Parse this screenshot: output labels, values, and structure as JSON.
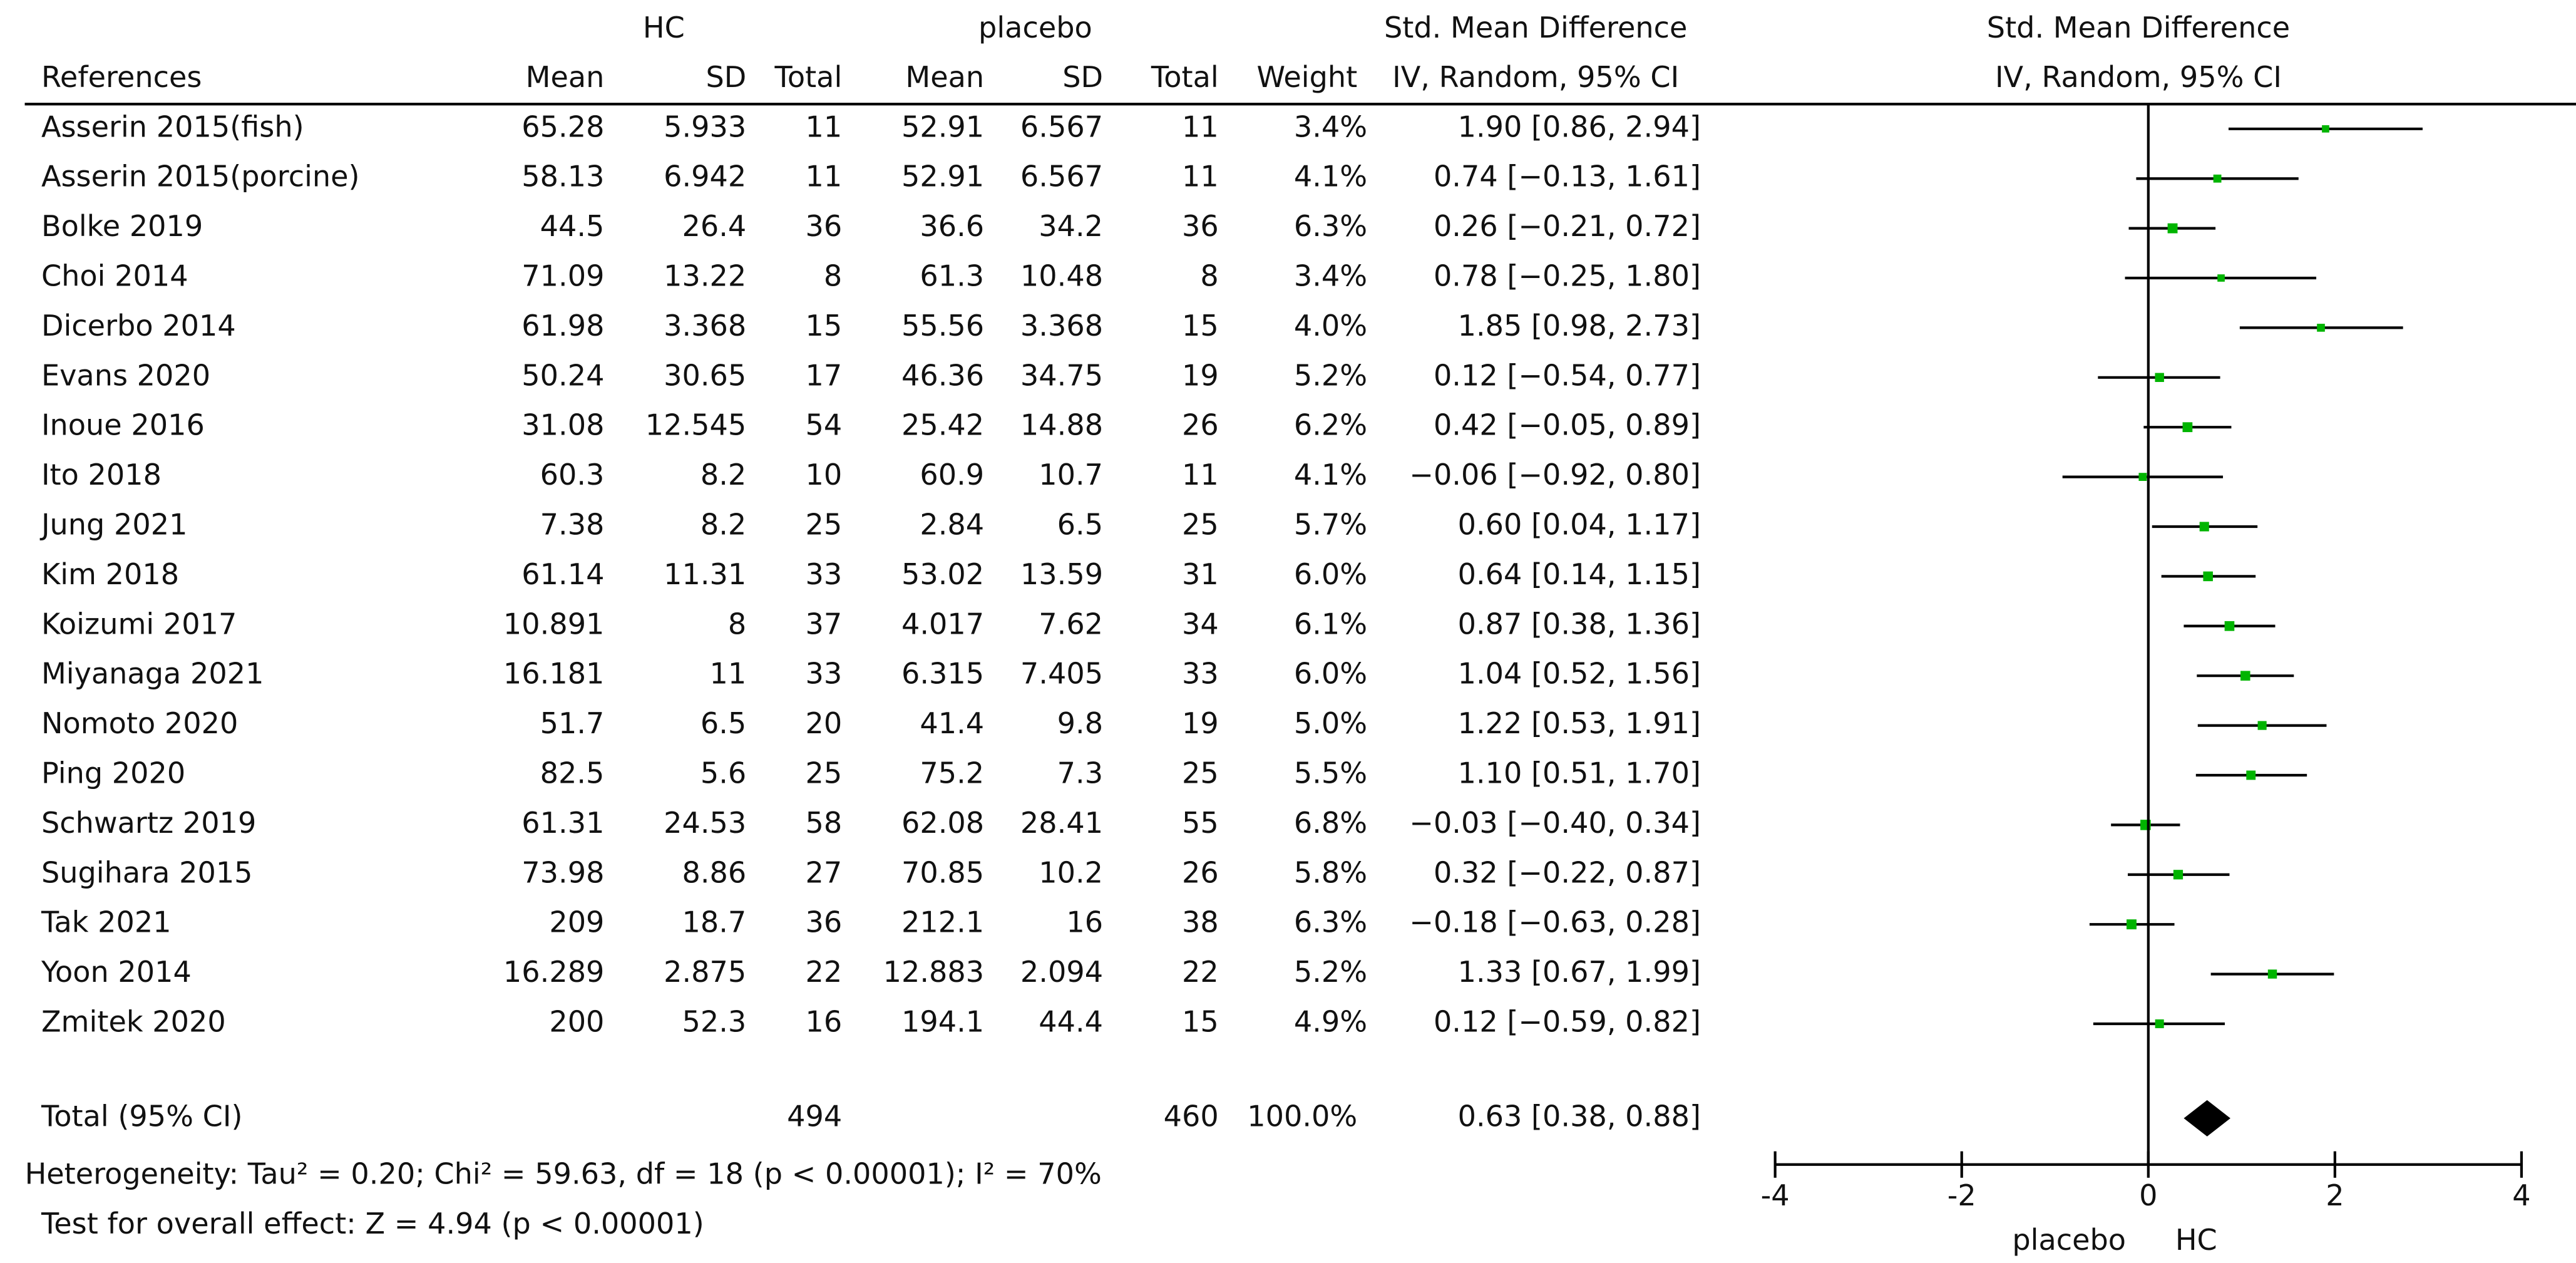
{
  "chart_data": {
    "type": "forest",
    "group_headers": [
      "HC",
      "placebo",
      "Std. Mean Difference"
    ],
    "columns": [
      "References",
      "Mean",
      "SD",
      "Total",
      "Mean",
      "SD",
      "Total",
      "Weight",
      "IV, Random, 95% CI"
    ],
    "plot_header": [
      "Std. Mean Difference",
      "IV, Random, 95% CI"
    ],
    "rows": [
      [
        "Asserin 2015(fish)",
        "65.28",
        "5.933",
        "11",
        "52.91",
        "6.567",
        "11"
      ],
      [
        "Asserin 2015(porcine)",
        "58.13",
        "6.942",
        "11",
        "52.91",
        "6.567",
        "11"
      ],
      [
        "Bolke 2019",
        "44.5",
        "26.4",
        "36",
        "36.6",
        "34.2",
        "36"
      ],
      [
        "Choi 2014",
        "71.09",
        "13.22",
        "8",
        "61.3",
        "10.48",
        "8"
      ],
      [
        "Dicerbo 2014",
        "61.98",
        "3.368",
        "15",
        "55.56",
        "3.368",
        "15"
      ],
      [
        "Evans 2020",
        "50.24",
        "30.65",
        "17",
        "46.36",
        "34.75",
        "19"
      ],
      [
        "Inoue 2016",
        "31.08",
        "12.545",
        "54",
        "25.42",
        "14.88",
        "26"
      ],
      [
        "Ito 2018",
        "60.3",
        "8.2",
        "10",
        "60.9",
        "10.7",
        "11"
      ],
      [
        "Jung 2021",
        "7.38",
        "8.2",
        "25",
        "2.84",
        "6.5",
        "25"
      ],
      [
        "Kim 2018",
        "61.14",
        "11.31",
        "33",
        "53.02",
        "13.59",
        "31"
      ],
      [
        "Koizumi 2017",
        "10.891",
        "8",
        "37",
        "4.017",
        "7.62",
        "34"
      ],
      [
        "Miyanaga 2021",
        "16.181",
        "11",
        "33",
        "6.315",
        "7.405",
        "33"
      ],
      [
        "Nomoto 2020",
        "51.7",
        "6.5",
        "20",
        "41.4",
        "9.8",
        "19"
      ],
      [
        "Ping 2020",
        "82.5",
        "5.6",
        "25",
        "75.2",
        "7.3",
        "25"
      ],
      [
        "Schwartz 2019",
        "61.31",
        "24.53",
        "58",
        "62.08",
        "28.41",
        "55"
      ],
      [
        "Sugihara 2015",
        "73.98",
        "8.86",
        "27",
        "70.85",
        "10.2",
        "26"
      ],
      [
        "Tak 2021",
        "209",
        "18.7",
        "36",
        "212.1",
        "16",
        "38"
      ],
      [
        "Yoon 2014",
        "16.289",
        "2.875",
        "22",
        "12.883",
        "2.094",
        "22"
      ],
      [
        "Zmitek 2020",
        "200",
        "52.3",
        "16",
        "194.1",
        "44.4",
        "15"
      ]
    ],
    "weights": [
      3.4,
      4.1,
      6.3,
      3.4,
      4.0,
      5.2,
      6.2,
      4.1,
      5.7,
      6.0,
      6.1,
      6.0,
      5.0,
      5.5,
      6.8,
      5.8,
      6.3,
      5.2,
      4.9
    ],
    "weight_labels": [
      "3.4%",
      "4.1%",
      "6.3%",
      "3.4%",
      "4.0%",
      "5.2%",
      "6.2%",
      "4.1%",
      "5.7%",
      "6.0%",
      "6.1%",
      "6.0%",
      "5.0%",
      "5.5%",
      "6.8%",
      "5.8%",
      "6.3%",
      "5.2%",
      "4.9%"
    ],
    "effects": [
      1.9,
      0.74,
      0.26,
      0.78,
      1.85,
      0.12,
      0.42,
      -0.06,
      0.6,
      0.64,
      0.87,
      1.04,
      1.22,
      1.1,
      -0.03,
      0.32,
      -0.18,
      1.33,
      0.12
    ],
    "ci_low": [
      0.86,
      -0.13,
      -0.21,
      -0.25,
      0.98,
      -0.54,
      -0.05,
      -0.92,
      0.04,
      0.14,
      0.38,
      0.52,
      0.53,
      0.51,
      -0.4,
      -0.22,
      -0.63,
      0.67,
      -0.59
    ],
    "ci_high": [
      2.94,
      1.61,
      0.72,
      1.8,
      2.73,
      0.77,
      0.89,
      0.8,
      1.17,
      1.15,
      1.36,
      1.56,
      1.91,
      1.7,
      0.34,
      0.87,
      0.28,
      1.99,
      0.82
    ],
    "value_labels": [
      "1.90 [0.86, 2.94]",
      "0.74 [−0.13, 1.61]",
      "0.26 [−0.21, 0.72]",
      "0.78 [−0.25, 1.80]",
      "1.85 [0.98, 2.73]",
      "0.12 [−0.54, 0.77]",
      "0.42 [−0.05, 0.89]",
      "−0.06 [−0.92, 0.80]",
      "0.60 [0.04, 1.17]",
      "0.64 [0.14, 1.15]",
      "0.87 [0.38, 1.36]",
      "1.04 [0.52, 1.56]",
      "1.22 [0.53, 1.91]",
      "1.10 [0.51, 1.70]",
      "−0.03 [−0.40, 0.34]",
      "0.32 [−0.22, 0.87]",
      "−0.18 [−0.63, 0.28]",
      "1.33 [0.67, 1.99]",
      "0.12 [−0.59, 0.82]"
    ],
    "color": "#00b400",
    "total": {
      "label": "Total (95% CI)",
      "hc_total": "494",
      "placebo_total": "460",
      "weight_label": "100.0%",
      "effect": 0.63,
      "ci_low": 0.38,
      "ci_high": 0.88,
      "value_label": "0.63 [0.38, 0.88]"
    },
    "heterogeneity": "Heterogeneity: Tau² = 0.20; Chi² = 59.63, df = 18 (p < 0.00001); I² = 70%",
    "overall_test": "Test for overall effect: Z = 4.94 (p < 0.00001)",
    "xlim": [
      -4,
      4
    ],
    "xticks": [
      -4,
      -2,
      0,
      2,
      4
    ],
    "x_left_label": "placebo",
    "x_right_label": "HC"
  }
}
